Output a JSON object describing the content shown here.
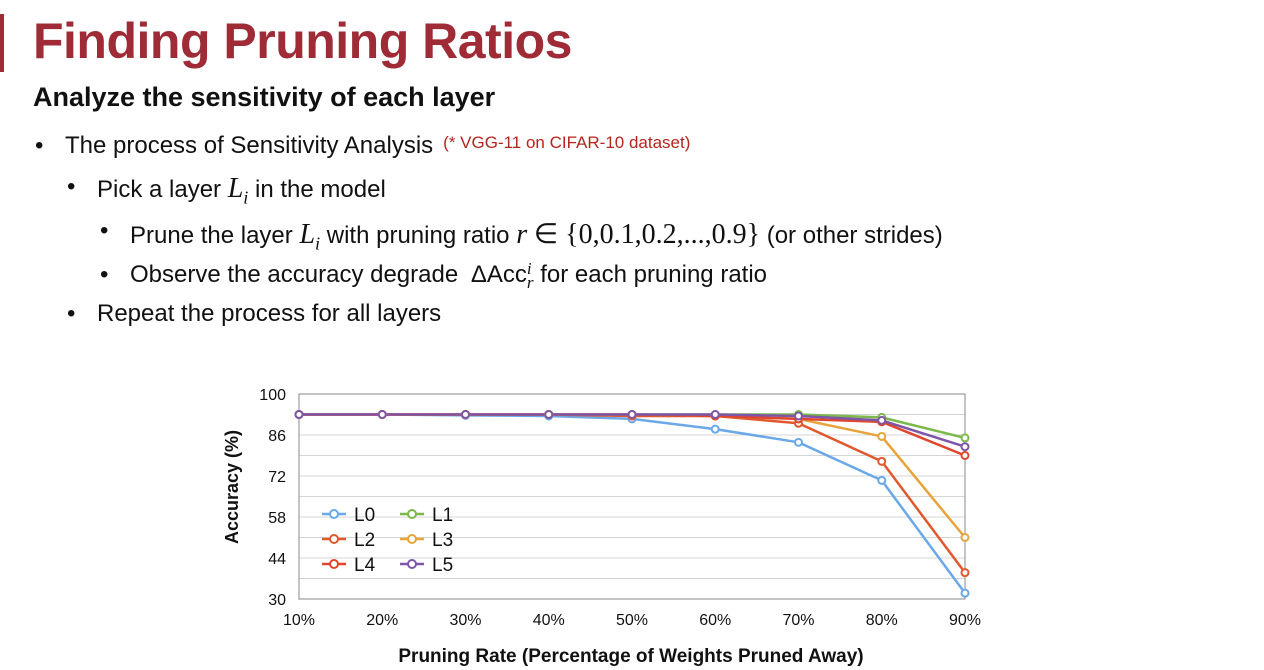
{
  "slide": {
    "title": "Finding Pruning Ratios",
    "subtitle": "Analyze the sensitivity of each layer",
    "bullets": {
      "b1_text": "The process of Sensitivity Analysis",
      "b1_note": "(* VGG-11 on CIFAR-10 dataset)",
      "b2_pre": "Pick a layer",
      "b2_var": "L",
      "b2_sub": "i",
      "b2_post": "in the model",
      "b3_pre": "Prune the layer",
      "b3_var": "L",
      "b3_sub": "i",
      "b3_mid": "with pruning ratio",
      "b3_r": "r",
      "b3_set": "∈ {0,0.1,0.2,...,0.9}",
      "b3_post": "(or other strides)",
      "b4_pre": "Observe the accuracy degrade",
      "b4_delta": "ΔAcc",
      "b4_sup": "i",
      "b4_sub": "r",
      "b4_post": "for each pruning ratio",
      "b5_text": "Repeat the process for all layers"
    },
    "accent_color": "#9e2b36"
  },
  "chart_data": {
    "type": "line",
    "xlabel": "Pruning Rate (Percentage of Weights Pruned Away)",
    "ylabel": "Accuracy (%)",
    "x": [
      "10%",
      "20%",
      "30%",
      "40%",
      "50%",
      "60%",
      "70%",
      "80%",
      "90%"
    ],
    "ylim": [
      30,
      100
    ],
    "yticks": [
      100,
      86,
      72,
      58,
      44,
      30
    ],
    "grid": true,
    "legend_position": "lower-left",
    "series": [
      {
        "name": "L0",
        "color": "#6aa8e8",
        "values": [
          93,
          93,
          92.7,
          92.5,
          91.5,
          88,
          83.5,
          70.5,
          32
        ]
      },
      {
        "name": "L1",
        "color": "#7cb84a",
        "values": [
          93,
          93,
          93,
          93,
          93,
          93,
          93,
          92,
          85
        ]
      },
      {
        "name": "L2",
        "color": "#e0582e",
        "values": [
          93,
          93,
          93,
          93,
          92.5,
          92.5,
          90,
          77,
          39
        ]
      },
      {
        "name": "L3",
        "color": "#e8a33a",
        "values": [
          93,
          93,
          93,
          93,
          93,
          92.5,
          91.5,
          85.5,
          51
        ]
      },
      {
        "name": "L4",
        "color": "#e0462e",
        "values": [
          93,
          93,
          93,
          93,
          93,
          92.5,
          91.5,
          90.5,
          79
        ]
      },
      {
        "name": "L5",
        "color": "#7e56a8",
        "values": [
          93,
          93,
          93,
          93,
          93,
          93,
          92.5,
          91,
          82
        ]
      }
    ]
  }
}
